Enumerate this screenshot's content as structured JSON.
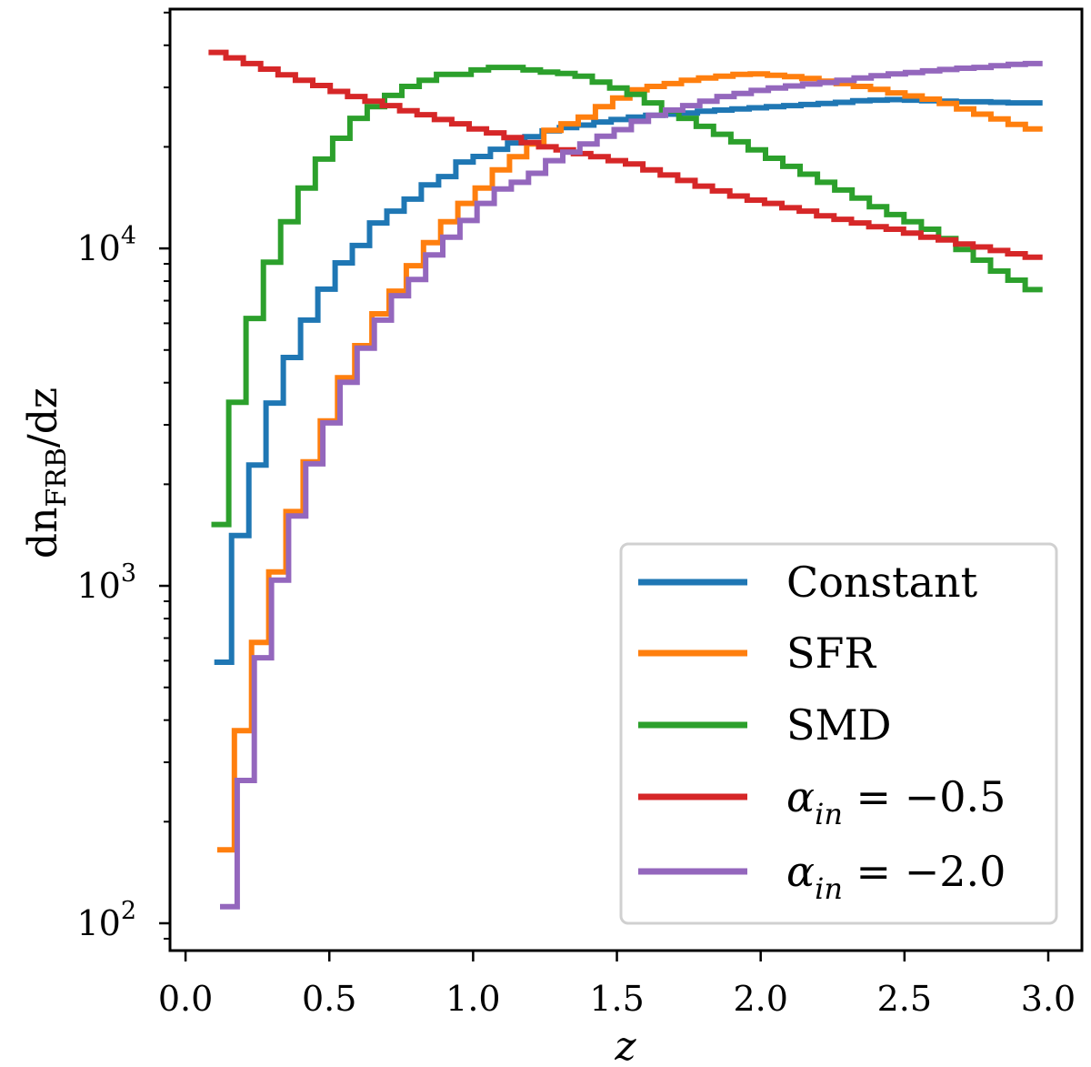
{
  "chart_data": {
    "type": "line",
    "style": "step-histogram",
    "xlabel": "z",
    "ylabel": {
      "main": "dn",
      "sub": "FRB",
      "tail": "/dz"
    },
    "xlim": [
      -0.054,
      3.117
    ],
    "ylim": [
      83,
      51200
    ],
    "yscale": "log",
    "grid": false,
    "legend_position": "lower-right",
    "x_ticks": [
      {
        "value": 0.0,
        "label": "0.0"
      },
      {
        "value": 0.5,
        "label": "0.5"
      },
      {
        "value": 1.0,
        "label": "1.0"
      },
      {
        "value": 1.5,
        "label": "1.5"
      },
      {
        "value": 2.0,
        "label": "2.0"
      },
      {
        "value": 2.5,
        "label": "2.5"
      },
      {
        "value": 3.0,
        "label": "3.0"
      }
    ],
    "y_ticks": [
      {
        "value": 100,
        "base": "10",
        "exp": "2"
      },
      {
        "value": 1000,
        "base": "10",
        "exp": "3"
      },
      {
        "value": 10000,
        "base": "10",
        "exp": "4"
      }
    ],
    "series": [
      {
        "name": "Constant",
        "legend": {
          "main": "Constant",
          "sub": "",
          "tail": ""
        },
        "color": "#1f77b4",
        "bin_range": [
          0.1,
          2.98
        ],
        "values": [
          594,
          1410,
          2280,
          3480,
          4750,
          6130,
          7570,
          9060,
          10200,
          11900,
          12900,
          14000,
          15430,
          16330,
          18030,
          18730,
          19670,
          20540,
          21450,
          22300,
          22800,
          23200,
          23700,
          24100,
          24500,
          24800,
          25000,
          25200,
          25500,
          25700,
          25900,
          26100,
          26300,
          26500,
          26700,
          26900,
          27100,
          27400,
          27500,
          27600,
          27500,
          27400,
          27300,
          27200,
          27200,
          27100,
          27000,
          27000
        ]
      },
      {
        "name": "SFR",
        "legend": {
          "main": "SFR",
          "sub": "",
          "tail": ""
        },
        "color": "#ff7f0e",
        "bin_range": [
          0.11,
          2.98
        ],
        "values": [
          165,
          372,
          680,
          1100,
          1660,
          2330,
          3080,
          4140,
          5150,
          6400,
          7470,
          8890,
          10400,
          12000,
          13600,
          15100,
          17100,
          18700,
          20400,
          22400,
          23400,
          24500,
          26300,
          27900,
          29500,
          30200,
          30800,
          31500,
          32000,
          32400,
          32800,
          32900,
          32600,
          32300,
          31900,
          31300,
          30800,
          30200,
          29600,
          28900,
          28300,
          27700,
          26900,
          25900,
          25000,
          24200,
          23300,
          22600
        ]
      },
      {
        "name": "SMD",
        "legend": {
          "main": "SMD",
          "sub": "",
          "tail": ""
        },
        "color": "#2ca02c",
        "bin_range": [
          0.09,
          2.98
        ],
        "values": [
          1520,
          3500,
          6200,
          9100,
          12000,
          15100,
          18400,
          21200,
          24300,
          26300,
          28400,
          30200,
          31500,
          32800,
          32800,
          33800,
          34400,
          34400,
          33800,
          33300,
          33000,
          32400,
          31100,
          29900,
          28600,
          27000,
          25600,
          24300,
          23000,
          21800,
          20700,
          19600,
          18500,
          17500,
          16600,
          15700,
          14900,
          14100,
          13300,
          12600,
          12000,
          11400,
          10700,
          9930,
          9230,
          8570,
          8050,
          7550
        ]
      },
      {
        "name": "α_in = −0.5",
        "legend": {
          "main": "α",
          "sub": "in",
          "tail": " = −0.5"
        },
        "color": "#d62728",
        "bin_range": [
          0.08,
          2.98
        ],
        "values": [
          38100,
          36700,
          35300,
          34000,
          32700,
          31500,
          30400,
          29200,
          28200,
          27300,
          26500,
          25600,
          24900,
          24100,
          23400,
          22600,
          22000,
          21300,
          20600,
          20000,
          19600,
          19100,
          18700,
          18200,
          17800,
          17100,
          16500,
          15900,
          15300,
          14800,
          14300,
          13900,
          13600,
          13200,
          12900,
          12500,
          12200,
          11900,
          11600,
          11400,
          11100,
          10800,
          10600,
          10300,
          10100,
          9860,
          9640,
          9420
        ]
      },
      {
        "name": "α_in = −2.0",
        "legend": {
          "main": "α",
          "sub": "in",
          "tail": " = −2.0"
        },
        "color": "#9467bd",
        "bin_range": [
          0.12,
          2.98
        ],
        "values": [
          112,
          265,
          612,
          1040,
          1610,
          2300,
          3040,
          4010,
          5060,
          6130,
          7240,
          8090,
          9570,
          10800,
          12100,
          13600,
          15000,
          15700,
          16700,
          18200,
          19300,
          20400,
          21500,
          22500,
          23800,
          24800,
          25700,
          26500,
          27300,
          28200,
          28800,
          29400,
          29900,
          30300,
          30700,
          31000,
          31500,
          32000,
          32500,
          32900,
          33200,
          33600,
          33900,
          34200,
          34400,
          34800,
          35100,
          35300
        ]
      }
    ]
  }
}
